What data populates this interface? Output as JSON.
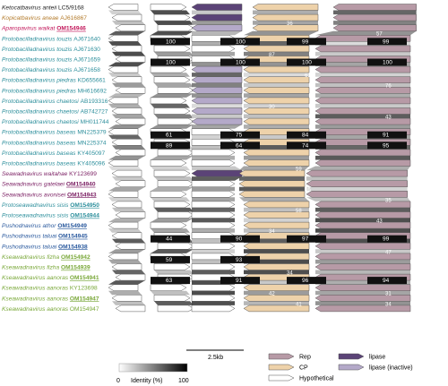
{
  "colors": {
    "rep": "#b79aa6",
    "cp": "#eed2aa",
    "hypothetical": "#ffffff",
    "lipase": "#5b4377",
    "lipase_inactive": "#b4a9c9",
    "green": "#7aa83a",
    "teal": "#2d8f9c",
    "blue": "#2b5a9e",
    "purple": "#7b1f63",
    "brown": "#b37a2a",
    "red": "#c2185b",
    "black": "#222222"
  },
  "genomes": [
    {
      "species": "Ketocatbavirus anteii",
      "accession": "LC5/9168",
      "color_key": "black",
      "underline": false
    },
    {
      "species": "Kopicatbavirus aneae",
      "accession": "AJ616867",
      "color_key": "brown",
      "underline": false
    },
    {
      "species": "Aparopavirus waikat",
      "accession": "OM154946",
      "color_key": "red",
      "underline": true
    },
    {
      "species": "Protobacilladnavirus touzis",
      "accession": "AJ671640",
      "color_key": "teal",
      "underline": false
    },
    {
      "species": "Protobacilladnavirus touzis",
      "accession": "AJ671630",
      "color_key": "teal",
      "underline": false
    },
    {
      "species": "Protobacilladnavirus touzis",
      "accession": "AJ671659",
      "color_key": "teal",
      "underline": false
    },
    {
      "species": "Protobacilladnavirus touzis",
      "accession": "AJ671658",
      "color_key": "teal",
      "underline": false
    },
    {
      "species": "Protobacilladnavirus piedras",
      "accession": "KD655661",
      "color_key": "teal",
      "underline": false
    },
    {
      "species": "Protobacilladnavirus piedras",
      "accession": "MH616692",
      "color_key": "teal",
      "underline": false
    },
    {
      "species": "Protobacilladnavirus chaetosi",
      "accession": "AB193316",
      "color_key": "teal",
      "underline": false
    },
    {
      "species": "Protobacilladnavirus chaetosi",
      "accession": "AB742727",
      "color_key": "teal",
      "underline": false
    },
    {
      "species": "Protobacilladnavirus chaetosi",
      "accession": "MH011744",
      "color_key": "teal",
      "underline": false
    },
    {
      "species": "Protobacilladnavirus baseas",
      "accession": "MN225379",
      "color_key": "teal",
      "underline": false
    },
    {
      "species": "Protobacilladnavirus baseas",
      "accession": "MN225374",
      "color_key": "teal",
      "underline": false
    },
    {
      "species": "Protobacilladnavirus baseas",
      "accession": "KY405097",
      "color_key": "teal",
      "underline": false
    },
    {
      "species": "Protobacilladnavirus baseas",
      "accession": "KY405096",
      "color_key": "teal",
      "underline": false
    },
    {
      "species": "Seawadnavirus waitahae",
      "accession": "KY123699",
      "color_key": "purple",
      "underline": false
    },
    {
      "species": "Seawadnavirus gatelaei",
      "accession": "OM154940",
      "color_key": "purple",
      "underline": true
    },
    {
      "species": "Seawadnavirus avonisei",
      "accession": "OM154943",
      "color_key": "purple",
      "underline": true
    },
    {
      "species": "Protoseawadnavirus sisis",
      "accession": "OM154950",
      "color_key": "teal",
      "underline": true
    },
    {
      "species": "Protoseawadnavirus sisis",
      "accession": "OM154944",
      "color_key": "teal",
      "underline": true
    },
    {
      "species": "Pushodnavirus athor",
      "accession": "OM154949",
      "color_key": "blue",
      "underline": true
    },
    {
      "species": "Pushodnavirus taluai",
      "accession": "OM154945",
      "color_key": "blue",
      "underline": true
    },
    {
      "species": "Pushodnavirus taluai",
      "accession": "OM154938",
      "color_key": "blue",
      "underline": true
    },
    {
      "species": "Kseawadnavirus fizha",
      "accession": "OM154942",
      "color_key": "green",
      "underline": true
    },
    {
      "species": "Kseawadnavirus fizha",
      "accession": "OM154939",
      "color_key": "green",
      "underline": true
    },
    {
      "species": "Kseawadnavirus aanoras",
      "accession": "OM154941",
      "color_key": "green",
      "underline": true
    },
    {
      "species": "Kseawadnavirus aanoras",
      "accession": "KY123698",
      "color_key": "green",
      "underline": false
    },
    {
      "species": "Kseawadnavirus aanoras",
      "accession": "OM154947",
      "color_key": "green",
      "underline": true
    },
    {
      "species": "Kseawadnavirus aanoras",
      "accession": "OM154947",
      "color_key": "green",
      "underline": false
    }
  ],
  "scale_bar": {
    "label": "2.5kb"
  },
  "identity_scale": {
    "min_label": "0",
    "caption": "Identity (%)",
    "max_label": "100"
  },
  "legend": [
    {
      "label": "Rep",
      "color_key": "rep"
    },
    {
      "label": "CP",
      "color_key": "cp"
    },
    {
      "label": "Hypothetical",
      "color_key": "hypothetical"
    },
    {
      "label": "lipase",
      "color_key": "lipase"
    },
    {
      "label": "lipase (inactive)",
      "color_key": "lipase_inactive"
    }
  ],
  "identity_labels": {
    "row3": {
      "a": "100",
      "b": "100",
      "c": "99",
      "d": "99"
    },
    "row5": {
      "a": "100",
      "b": "100",
      "c": "100",
      "d": "100"
    },
    "row12": {
      "a": "61",
      "b": "75",
      "c": "84",
      "d": "91"
    },
    "row13": {
      "a": "89",
      "b": "64",
      "c": "74",
      "d": "95"
    },
    "row22": {
      "a": "44",
      "b": "90",
      "c": "97",
      "d": "99"
    },
    "row24": {
      "a": "59",
      "b": "93"
    },
    "row26": {
      "a": "63",
      "b": "91",
      "c": "96",
      "d": "94"
    },
    "misc": [
      "36",
      "57",
      "87",
      "63",
      "76",
      "30",
      "43",
      "59",
      "46",
      "35",
      "58",
      "43",
      "34",
      "47",
      "34",
      "42",
      "41",
      "34",
      "31"
    ]
  }
}
